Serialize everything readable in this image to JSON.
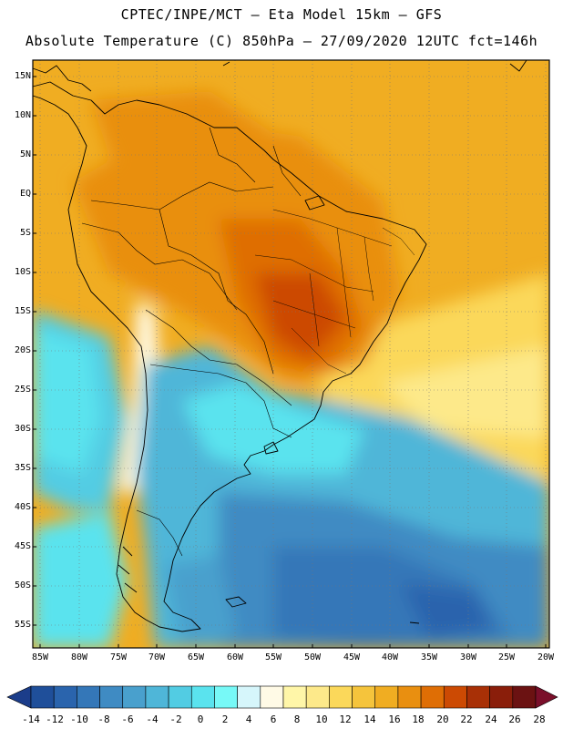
{
  "header": {
    "title_line1": "CPTEC/INPE/MCT –  Eta Model 15km – GFS",
    "title_line2": "Absolute Temperature (C) 850hPa – 27/09/2020 12UTC fct=146h"
  },
  "map": {
    "lat_labels": [
      "15N",
      "10N",
      "5N",
      "EQ",
      "5S",
      "10S",
      "15S",
      "20S",
      "25S",
      "30S",
      "35S",
      "40S",
      "45S",
      "50S",
      "55S"
    ],
    "lon_labels": [
      "85W",
      "80W",
      "75W",
      "70W",
      "65W",
      "60W",
      "55W",
      "50W",
      "45W",
      "40W",
      "35W",
      "30W",
      "25W",
      "20W"
    ],
    "grid": "dotted"
  },
  "colorbar": {
    "labels": [
      "-14",
      "-12",
      "-10",
      "-8",
      "-6",
      "-4",
      "-2",
      "0",
      "2",
      "4",
      "6",
      "8",
      "10",
      "12",
      "14",
      "16",
      "18",
      "20",
      "22",
      "24",
      "26",
      "28"
    ],
    "colors": [
      "#1b3d8a",
      "#1f4f9a",
      "#2a64ad",
      "#3477b8",
      "#3f8bc3",
      "#49a0cd",
      "#4fb6d8",
      "#52cce3",
      "#5ae3ee",
      "#77f9f7",
      "#d6f6fb",
      "#fffae6",
      "#fff6a8",
      "#fde98a",
      "#fbd85a",
      "#f5c43c",
      "#f0ad22",
      "#e98f10",
      "#df6e05",
      "#cc4a03",
      "#a83006",
      "#8a1e0a",
      "#6b1212",
      "#7a0f2a"
    ]
  }
}
